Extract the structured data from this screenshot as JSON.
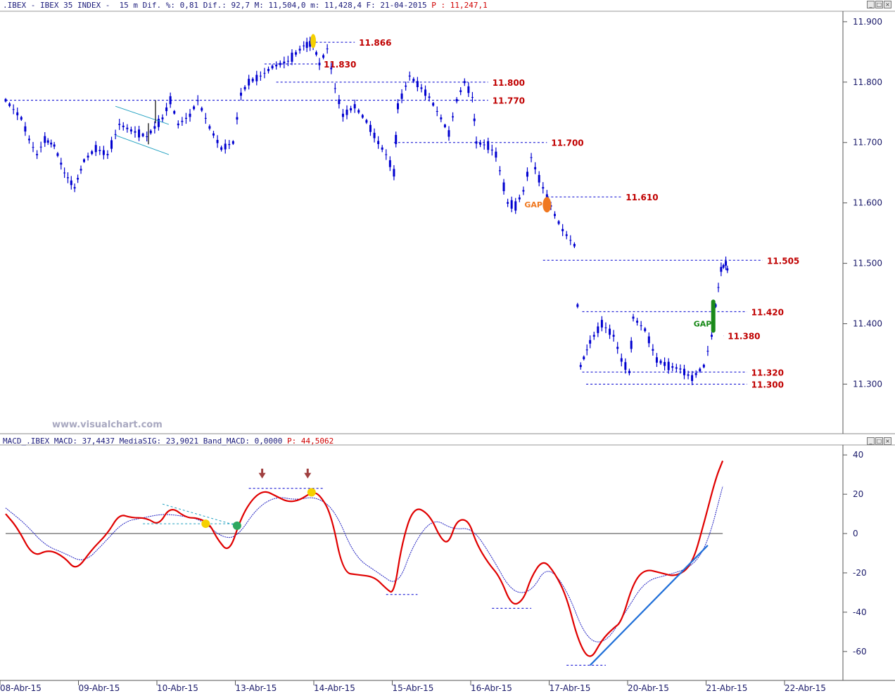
{
  "price_header": {
    "text": ".IBEX - IBEX 35 INDEX -  15 m Dif. %: 0,81 Dif.: 92,7 M: 11,504,0 m: 11,428,4 F: 21-04-2015",
    "p_text": " P : 11,247,1"
  },
  "macd_header": {
    "text": "MACD_.IBEX MACD: 37,4437 MediaSIG: 23,9021 Band_MACD: 0,0000",
    "p_text": " P: 44,5062"
  },
  "watermark": "www.visualchart.com",
  "pane_buttons": [
    "_",
    "□",
    "×"
  ],
  "colors": {
    "price": "#0000d0",
    "levels": "#c00000",
    "macd": "#e00000",
    "signal": "#2020c0",
    "gap_down": "#f07820",
    "gap_up": "#1a8a1a",
    "trend": "#1f6fd8",
    "highlight": "#f5d000",
    "arrow": "#a04040"
  },
  "chart_data": [
    {
      "type": "candlestick",
      "title": "IBEX 35 INDEX - 15 m",
      "x_tick_labels": [
        "08-Abr-15",
        "09-Abr-15",
        "10-Abr-15",
        "13-Abr-15",
        "14-Abr-15",
        "15-Abr-15",
        "16-Abr-15",
        "17-Abr-15",
        "20-Abr-15",
        "21-Abr-15",
        "22-Abr-15"
      ],
      "y_ticks": [
        "11.900",
        "11.800",
        "11.700",
        "11.600",
        "11.500",
        "11.400",
        "11.300"
      ],
      "y_tick_values": [
        11900,
        11800,
        11700,
        11600,
        11500,
        11400,
        11300
      ],
      "ylim": [
        11240,
        11915
      ],
      "close_path": [
        {
          "x": 0.0,
          "y": 11770
        },
        {
          "x": 0.2,
          "y": 11740
        },
        {
          "x": 0.3,
          "y": 11705
        },
        {
          "x": 0.4,
          "y": 11680
        },
        {
          "x": 0.5,
          "y": 11705
        },
        {
          "x": 0.62,
          "y": 11695
        },
        {
          "x": 0.75,
          "y": 11650
        },
        {
          "x": 0.88,
          "y": 11625
        },
        {
          "x": 1.0,
          "y": 11670
        },
        {
          "x": 1.15,
          "y": 11690
        },
        {
          "x": 1.3,
          "y": 11680
        },
        {
          "x": 1.45,
          "y": 11730
        },
        {
          "x": 1.6,
          "y": 11720
        },
        {
          "x": 1.8,
          "y": 11710
        },
        {
          "x": 2.0,
          "y": 11740
        },
        {
          "x": 2.1,
          "y": 11770
        },
        {
          "x": 2.2,
          "y": 11730
        },
        {
          "x": 2.35,
          "y": 11745
        },
        {
          "x": 2.45,
          "y": 11770
        },
        {
          "x": 2.6,
          "y": 11725
        },
        {
          "x": 2.75,
          "y": 11690
        },
        {
          "x": 2.9,
          "y": 11700
        },
        {
          "x": 3.0,
          "y": 11780
        },
        {
          "x": 3.1,
          "y": 11800
        },
        {
          "x": 3.25,
          "y": 11810
        },
        {
          "x": 3.4,
          "y": 11825
        },
        {
          "x": 3.6,
          "y": 11835
        },
        {
          "x": 3.8,
          "y": 11860
        },
        {
          "x": 3.92,
          "y": 11865
        },
        {
          "x": 4.0,
          "y": 11830
        },
        {
          "x": 4.1,
          "y": 11855
        },
        {
          "x": 4.2,
          "y": 11790
        },
        {
          "x": 4.3,
          "y": 11745
        },
        {
          "x": 4.45,
          "y": 11760
        },
        {
          "x": 4.6,
          "y": 11735
        },
        {
          "x": 4.75,
          "y": 11700
        },
        {
          "x": 4.85,
          "y": 11680
        },
        {
          "x": 4.95,
          "y": 11650
        },
        {
          "x": 5.0,
          "y": 11760
        },
        {
          "x": 5.15,
          "y": 11810
        },
        {
          "x": 5.3,
          "y": 11790
        },
        {
          "x": 5.4,
          "y": 11775
        },
        {
          "x": 5.55,
          "y": 11740
        },
        {
          "x": 5.65,
          "y": 11715
        },
        {
          "x": 5.75,
          "y": 11770
        },
        {
          "x": 5.85,
          "y": 11800
        },
        {
          "x": 5.95,
          "y": 11775
        },
        {
          "x": 6.0,
          "y": 11700
        },
        {
          "x": 6.15,
          "y": 11695
        },
        {
          "x": 6.25,
          "y": 11680
        },
        {
          "x": 6.4,
          "y": 11600
        },
        {
          "x": 6.5,
          "y": 11595
        },
        {
          "x": 6.6,
          "y": 11620
        },
        {
          "x": 6.7,
          "y": 11675
        },
        {
          "x": 6.8,
          "y": 11640
        },
        {
          "x": 6.9,
          "y": 11610
        },
        {
          "x": 7.0,
          "y": 11580
        },
        {
          "x": 7.1,
          "y": 11555
        },
        {
          "x": 7.25,
          "y": 11530
        },
        {
          "x": 7.33,
          "y": 11330
        },
        {
          "x": 7.45,
          "y": 11370
        },
        {
          "x": 7.6,
          "y": 11400
        },
        {
          "x": 7.75,
          "y": 11380
        },
        {
          "x": 7.85,
          "y": 11340
        },
        {
          "x": 7.95,
          "y": 11320
        },
        {
          "x": 8.0,
          "y": 11410
        },
        {
          "x": 8.15,
          "y": 11390
        },
        {
          "x": 8.3,
          "y": 11340
        },
        {
          "x": 8.45,
          "y": 11330
        },
        {
          "x": 8.6,
          "y": 11325
        },
        {
          "x": 8.75,
          "y": 11310
        },
        {
          "x": 8.9,
          "y": 11330
        },
        {
          "x": 9.0,
          "y": 11380
        },
        {
          "x": 9.05,
          "y": 11430
        },
        {
          "x": 9.12,
          "y": 11490
        },
        {
          "x": 9.18,
          "y": 11500
        },
        {
          "x": 9.22,
          "y": 11480
        }
      ],
      "horizontal_levels": [
        11866,
        11830,
        11800,
        11770,
        11700,
        11610,
        11505,
        11420,
        11380,
        11320,
        11300
      ],
      "level_labels": [
        "11.866",
        "11.830",
        "11.800",
        "11.770",
        "11.700",
        "11.610",
        "11.505",
        "11.420",
        "11.380",
        "11.320",
        "11.300"
      ],
      "annotations": [
        {
          "text": "GAP",
          "color": "#f07820",
          "near": "11.610"
        },
        {
          "text": "GAP",
          "color": "#1a8a1a",
          "near": "11.420"
        }
      ]
    },
    {
      "type": "line",
      "title": "MACD_.IBEX",
      "y_ticks": [
        "40",
        "20",
        "0",
        "-20",
        "-40",
        "-60"
      ],
      "y_tick_values": [
        40,
        20,
        0,
        -20,
        -40,
        -60
      ],
      "ylim": [
        -74,
        44
      ],
      "series": [
        {
          "name": "MACD",
          "values": [
            {
              "x": 0.0,
              "y": 10
            },
            {
              "x": 0.15,
              "y": 3
            },
            {
              "x": 0.35,
              "y": -12
            },
            {
              "x": 0.55,
              "y": -8
            },
            {
              "x": 0.75,
              "y": -12
            },
            {
              "x": 0.9,
              "y": -19
            },
            {
              "x": 1.1,
              "y": -8
            },
            {
              "x": 1.3,
              "y": 0
            },
            {
              "x": 1.45,
              "y": 10
            },
            {
              "x": 1.6,
              "y": 8
            },
            {
              "x": 1.8,
              "y": 8
            },
            {
              "x": 1.95,
              "y": 4
            },
            {
              "x": 2.1,
              "y": 14
            },
            {
              "x": 2.3,
              "y": 8
            },
            {
              "x": 2.45,
              "y": 8
            },
            {
              "x": 2.6,
              "y": 5
            },
            {
              "x": 2.7,
              "y": -3
            },
            {
              "x": 2.85,
              "y": -10
            },
            {
              "x": 3.0,
              "y": 8
            },
            {
              "x": 3.15,
              "y": 18
            },
            {
              "x": 3.3,
              "y": 22
            },
            {
              "x": 3.45,
              "y": 19
            },
            {
              "x": 3.6,
              "y": 16
            },
            {
              "x": 3.75,
              "y": 17
            },
            {
              "x": 3.9,
              "y": 21
            },
            {
              "x": 4.0,
              "y": 20
            },
            {
              "x": 4.15,
              "y": 10
            },
            {
              "x": 4.3,
              "y": -20
            },
            {
              "x": 4.5,
              "y": -21
            },
            {
              "x": 4.7,
              "y": -22
            },
            {
              "x": 4.85,
              "y": -28
            },
            {
              "x": 4.95,
              "y": -31
            },
            {
              "x": 5.05,
              "y": -5
            },
            {
              "x": 5.2,
              "y": 14
            },
            {
              "x": 5.4,
              "y": 10
            },
            {
              "x": 5.55,
              "y": -3
            },
            {
              "x": 5.65,
              "y": -5
            },
            {
              "x": 5.75,
              "y": 7
            },
            {
              "x": 5.9,
              "y": 7
            },
            {
              "x": 6.0,
              "y": -5
            },
            {
              "x": 6.15,
              "y": -15
            },
            {
              "x": 6.3,
              "y": -22
            },
            {
              "x": 6.45,
              "y": -37
            },
            {
              "x": 6.6,
              "y": -34
            },
            {
              "x": 6.7,
              "y": -22
            },
            {
              "x": 6.85,
              "y": -13
            },
            {
              "x": 7.0,
              "y": -20
            },
            {
              "x": 7.15,
              "y": -32
            },
            {
              "x": 7.3,
              "y": -55
            },
            {
              "x": 7.45,
              "y": -65
            },
            {
              "x": 7.6,
              "y": -54
            },
            {
              "x": 7.75,
              "y": -48
            },
            {
              "x": 7.85,
              "y": -45
            },
            {
              "x": 8.0,
              "y": -25
            },
            {
              "x": 8.15,
              "y": -18
            },
            {
              "x": 8.35,
              "y": -20
            },
            {
              "x": 8.55,
              "y": -22
            },
            {
              "x": 8.75,
              "y": -16
            },
            {
              "x": 8.9,
              "y": 5
            },
            {
              "x": 9.05,
              "y": 28
            },
            {
              "x": 9.14,
              "y": 37
            }
          ]
        },
        {
          "name": "MediaSIG",
          "values": [
            {
              "x": 0.0,
              "y": 13
            },
            {
              "x": 0.25,
              "y": 5
            },
            {
              "x": 0.5,
              "y": -6
            },
            {
              "x": 0.75,
              "y": -10
            },
            {
              "x": 1.0,
              "y": -15
            },
            {
              "x": 1.25,
              "y": -5
            },
            {
              "x": 1.5,
              "y": 6
            },
            {
              "x": 1.75,
              "y": 8
            },
            {
              "x": 2.0,
              "y": 10
            },
            {
              "x": 2.25,
              "y": 9
            },
            {
              "x": 2.5,
              "y": 7
            },
            {
              "x": 2.75,
              "y": -2
            },
            {
              "x": 2.95,
              "y": -2
            },
            {
              "x": 3.2,
              "y": 13
            },
            {
              "x": 3.45,
              "y": 19
            },
            {
              "x": 3.7,
              "y": 17
            },
            {
              "x": 3.95,
              "y": 19
            },
            {
              "x": 4.2,
              "y": 12
            },
            {
              "x": 4.45,
              "y": -12
            },
            {
              "x": 4.75,
              "y": -20
            },
            {
              "x": 5.0,
              "y": -27
            },
            {
              "x": 5.2,
              "y": -5
            },
            {
              "x": 5.45,
              "y": 8
            },
            {
              "x": 5.7,
              "y": 2
            },
            {
              "x": 5.95,
              "y": 3
            },
            {
              "x": 6.2,
              "y": -12
            },
            {
              "x": 6.45,
              "y": -30
            },
            {
              "x": 6.7,
              "y": -30
            },
            {
              "x": 6.9,
              "y": -16
            },
            {
              "x": 7.15,
              "y": -28
            },
            {
              "x": 7.4,
              "y": -54
            },
            {
              "x": 7.65,
              "y": -56
            },
            {
              "x": 7.9,
              "y": -40
            },
            {
              "x": 8.15,
              "y": -24
            },
            {
              "x": 8.45,
              "y": -21
            },
            {
              "x": 8.75,
              "y": -17
            },
            {
              "x": 8.95,
              "y": -5
            },
            {
              "x": 9.14,
              "y": 24
            }
          ]
        }
      ]
    }
  ]
}
